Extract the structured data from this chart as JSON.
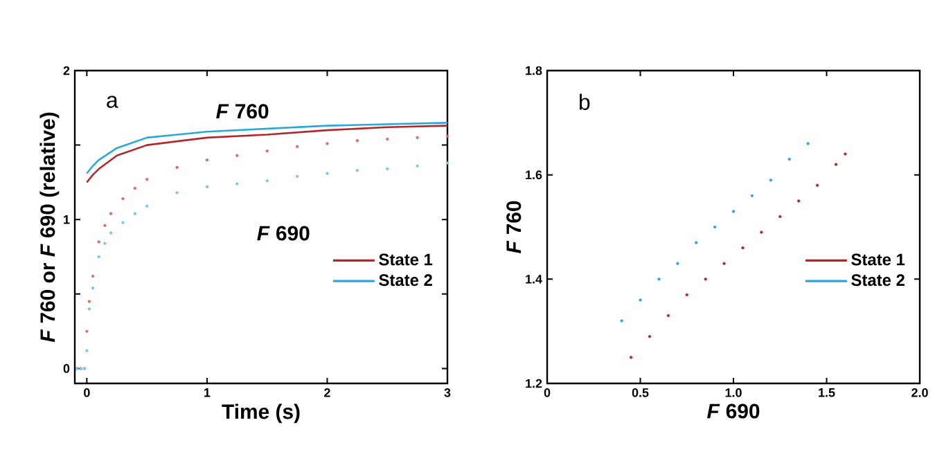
{
  "chart_data": [
    {
      "type": "line",
      "xlabel": "Time (s)",
      "ylabel": "*F* 760 or *F* 690 (relative)",
      "xlim": [
        -0.1,
        3
      ],
      "ylim": [
        -0.1,
        2
      ],
      "xticks": [
        0,
        1,
        2,
        3
      ],
      "yticks": [
        0,
        {
          "value": 0.5,
          "label": null
        },
        1,
        {
          "value": 1.5,
          "label": null
        },
        2
      ],
      "grid": false,
      "legend": "right",
      "annotations": [
        "a",
        "*F* 760",
        "*F* 690"
      ],
      "series": [
        {
          "name": "State 1",
          "color": "#b3262c",
          "type": "line",
          "marker": "none",
          "x": [
            0,
            0.05,
            0.1,
            0.25,
            0.5,
            1,
            1.5,
            2,
            2.5,
            3
          ],
          "values": [
            1.25,
            1.3,
            1.34,
            1.43,
            1.5,
            1.55,
            1.57,
            1.6,
            1.62,
            1.63
          ]
        },
        {
          "name": "State 2",
          "color": "#2aa7dd",
          "type": "line",
          "marker": "none",
          "x": [
            0,
            0.05,
            0.1,
            0.25,
            0.5,
            1,
            1.5,
            2,
            2.5,
            3
          ],
          "values": [
            1.31,
            1.36,
            1.4,
            1.48,
            1.55,
            1.59,
            1.61,
            1.63,
            1.64,
            1.65
          ]
        },
        {
          "color": "#d8696c",
          "type": "scatter",
          "marker": "circle",
          "x": [
            -0.08,
            -0.05,
            -0.02,
            0,
            0.02,
            0.05,
            0.1,
            0.15,
            0.2,
            0.3,
            0.4,
            0.5,
            0.75,
            1,
            1.25,
            1.5,
            1.75,
            2,
            2.25,
            2.5,
            2.75,
            3
          ],
          "values": [
            0,
            0,
            0,
            0.25,
            0.45,
            0.62,
            0.85,
            0.96,
            1.04,
            1.14,
            1.21,
            1.27,
            1.35,
            1.4,
            1.43,
            1.46,
            1.49,
            1.51,
            1.53,
            1.54,
            1.55,
            1.56
          ]
        },
        {
          "color": "#74c7ea",
          "type": "scatter",
          "marker": "circle",
          "x": [
            -0.08,
            -0.05,
            -0.02,
            0,
            0.02,
            0.05,
            0.1,
            0.15,
            0.2,
            0.3,
            0.4,
            0.5,
            0.75,
            1,
            1.25,
            1.5,
            1.75,
            2,
            2.25,
            2.5,
            2.75,
            3
          ],
          "values": [
            0,
            0,
            0,
            0.12,
            0.4,
            0.54,
            0.75,
            0.84,
            0.91,
            0.98,
            1.04,
            1.09,
            1.18,
            1.22,
            1.24,
            1.26,
            1.29,
            1.31,
            1.33,
            1.34,
            1.36,
            1.38
          ]
        }
      ]
    },
    {
      "type": "scatter",
      "xlabel": "*F* 690",
      "ylabel": "*F* 760",
      "xlim": [
        0,
        2
      ],
      "ylim": [
        1.2,
        1.8
      ],
      "xticks": [
        0,
        0.5,
        {
          "value": 1,
          "label": "1.0"
        },
        1.5,
        {
          "value": 2,
          "label": "2.0"
        }
      ],
      "yticks": [
        1.2,
        1.4,
        1.6,
        1.8
      ],
      "grid": false,
      "legend": "right",
      "annotations": [
        "b"
      ],
      "series": [
        {
          "name": "State 1",
          "color": "#b3262c",
          "marker": "circle",
          "x": [
            0.45,
            0.55,
            0.65,
            0.75,
            0.85,
            0.95,
            1.05,
            1.15,
            1.25,
            1.35,
            1.45,
            1.55,
            1.6
          ],
          "values": [
            1.25,
            1.29,
            1.33,
            1.37,
            1.4,
            1.43,
            1.46,
            1.49,
            1.52,
            1.55,
            1.58,
            1.62,
            1.64
          ]
        },
        {
          "name": "State 2",
          "color": "#2aa7dd",
          "marker": "circle",
          "x": [
            0.4,
            0.5,
            0.6,
            0.7,
            0.8,
            0.9,
            1.0,
            1.1,
            1.2,
            1.3,
            1.4
          ],
          "values": [
            1.32,
            1.36,
            1.4,
            1.43,
            1.47,
            1.5,
            1.53,
            1.56,
            1.59,
            1.63,
            1.66
          ]
        }
      ]
    }
  ]
}
